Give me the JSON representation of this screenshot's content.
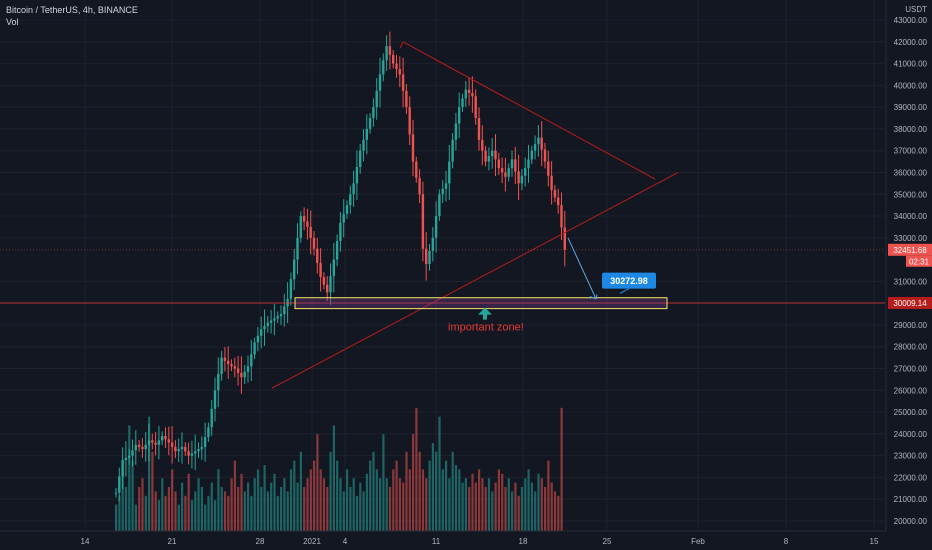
{
  "header": {
    "symbol": "Bitcoin / TetherUS, 4h, BINANCE",
    "indicator": "Vol"
  },
  "axis": {
    "currency": "USDT"
  },
  "colors": {
    "up": "#26a69a",
    "down": "#ef5350",
    "pattern": "#b71c1c",
    "zone": "#f5e663",
    "target": "#1e88e5",
    "support": "#e53935"
  },
  "chart_data": {
    "type": "candlestick",
    "y_ticks": [
      20000,
      21000,
      22000,
      23000,
      24000,
      25000,
      26000,
      27000,
      28000,
      29000,
      31000,
      33000,
      34000,
      35000,
      36000,
      37000,
      38000,
      39000,
      40000,
      41000,
      42000,
      43000
    ],
    "x_ticks": [
      "14",
      "21",
      "28",
      "2021",
      "4",
      "11",
      "18",
      "25",
      "Feb",
      "8",
      "15"
    ],
    "ylim": [
      19500,
      43800
    ],
    "series_path": [
      [
        0,
        21300
      ],
      [
        2,
        22800
      ],
      [
        4,
        23000
      ],
      [
        6,
        23500
      ],
      [
        8,
        23300
      ],
      [
        10,
        23700
      ],
      [
        12,
        23500
      ],
      [
        14,
        23900
      ],
      [
        16,
        23600
      ],
      [
        18,
        23200
      ],
      [
        20,
        23400
      ],
      [
        22,
        23000
      ],
      [
        24,
        23200
      ],
      [
        26,
        23400
      ],
      [
        28,
        24300
      ],
      [
        30,
        26000
      ],
      [
        32,
        27500
      ],
      [
        34,
        27200
      ],
      [
        36,
        27000
      ],
      [
        38,
        26600
      ],
      [
        40,
        27100
      ],
      [
        42,
        28200
      ],
      [
        44,
        28800
      ],
      [
        46,
        29100
      ],
      [
        48,
        29300
      ],
      [
        50,
        29500
      ],
      [
        52,
        30200
      ],
      [
        54,
        32000
      ],
      [
        56,
        34000
      ],
      [
        58,
        33500
      ],
      [
        60,
        32500
      ],
      [
        62,
        31200
      ],
      [
        64,
        30500
      ],
      [
        66,
        32000
      ],
      [
        68,
        33700
      ],
      [
        70,
        34500
      ],
      [
        72,
        35500
      ],
      [
        74,
        37000
      ],
      [
        76,
        38000
      ],
      [
        78,
        39000
      ],
      [
        80,
        40500
      ],
      [
        82,
        41800
      ],
      [
        84,
        41000
      ],
      [
        86,
        40500
      ],
      [
        88,
        39000
      ],
      [
        90,
        36500
      ],
      [
        92,
        35000
      ],
      [
        93,
        32500
      ],
      [
        94,
        31800
      ],
      [
        96,
        33000
      ],
      [
        98,
        35000
      ],
      [
        100,
        35500
      ],
      [
        102,
        37500
      ],
      [
        104,
        39000
      ],
      [
        106,
        39800
      ],
      [
        108,
        39500
      ],
      [
        110,
        37500
      ],
      [
        112,
        36500
      ],
      [
        114,
        37000
      ],
      [
        116,
        36200
      ],
      [
        118,
        35800
      ],
      [
        120,
        36600
      ],
      [
        122,
        35500
      ],
      [
        124,
        36200
      ],
      [
        126,
        37000
      ],
      [
        128,
        37600
      ],
      [
        130,
        36500
      ],
      [
        132,
        35200
      ],
      [
        134,
        34500
      ],
      [
        136,
        32451.68
      ]
    ],
    "volume": [
      6,
      8,
      14,
      10,
      24,
      16,
      6,
      10,
      12,
      8,
      26,
      18,
      9,
      7,
      12,
      8,
      10,
      14,
      9,
      6,
      11,
      8,
      13,
      7,
      9,
      12,
      10,
      6,
      8,
      11,
      7,
      14,
      10,
      9,
      8,
      12,
      16,
      10,
      13,
      9,
      11,
      8,
      12,
      14,
      10,
      15,
      9,
      11,
      13,
      8,
      10,
      12,
      9,
      14,
      16,
      11,
      18,
      10,
      12,
      14,
      16,
      22,
      14,
      12,
      10,
      18,
      24,
      16,
      12,
      9,
      14,
      10,
      12,
      8,
      11,
      9,
      13,
      16,
      18,
      14,
      12,
      22,
      12,
      10,
      14,
      16,
      12,
      11,
      18,
      14,
      22,
      28,
      18,
      14,
      12,
      16,
      20,
      18,
      26,
      14,
      16,
      12,
      18,
      15,
      14,
      11,
      12,
      10,
      13,
      11,
      14,
      12,
      10,
      12,
      9,
      11,
      14,
      13,
      10,
      12,
      9,
      11,
      8,
      10,
      12,
      14,
      11,
      9,
      13,
      12,
      10,
      16,
      11,
      9,
      8,
      28
    ],
    "pattern": {
      "upper": [
        [
          92,
          42000
        ],
        [
          145,
          35700
        ]
      ],
      "lower": [
        [
          64,
          26100
        ],
        [
          155,
          36000
        ]
      ],
      "spike": [
        [
          92,
          42000
        ],
        [
          89,
          41800
        ]
      ]
    },
    "zone": {
      "low": 29750,
      "high": 30250,
      "label": "important zone!"
    },
    "target": {
      "value": 30272.98,
      "label": "30272.98"
    },
    "support": {
      "value": 30009.14,
      "label": "30009.14"
    },
    "current": {
      "value": 32451.68,
      "label": "32451.68",
      "countdown": "02:31"
    }
  }
}
